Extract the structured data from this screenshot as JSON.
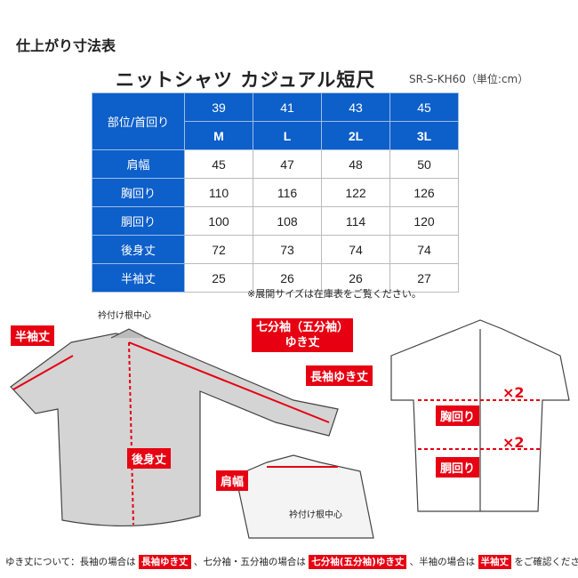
{
  "title": "仕上がり寸法表",
  "product": "ニットシャツ カジュアル短尺",
  "code": "SR-S-KH60（単位:cm）",
  "table": {
    "corner": "部位/首回り",
    "necks": [
      "39",
      "41",
      "43",
      "45"
    ],
    "sizes": [
      "M",
      "L",
      "2L",
      "3L"
    ],
    "rows": [
      {
        "label": "肩幅",
        "values": [
          "45",
          "47",
          "48",
          "50"
        ]
      },
      {
        "label": "胸回り",
        "values": [
          "110",
          "116",
          "122",
          "126"
        ]
      },
      {
        "label": "胴回り",
        "values": [
          "100",
          "108",
          "114",
          "120"
        ]
      },
      {
        "label": "後身丈",
        "values": [
          "72",
          "73",
          "74",
          "74"
        ]
      },
      {
        "label": "半袖丈",
        "values": [
          "25",
          "26",
          "26",
          "27"
        ]
      }
    ]
  },
  "note": "※展開サイズは在庫表をご覧ください。",
  "diagram": {
    "half_sleeve": "半袖丈",
    "collar_center": "衿付け根中心",
    "three_quarter_line1": "七分袖（五分袖）",
    "three_quarter_line2": "ゆき丈",
    "long_sleeve": "長袖ゆき丈",
    "back_length": "後身丈",
    "shoulder": "肩幅",
    "collar_center2": "衿付け根中心",
    "chest": "胸回り",
    "waist": "胴回り",
    "x2a": "×2",
    "x2b": "×2"
  },
  "footer": {
    "t1": "ゆき丈について：長袖の場合は",
    "b1": "長袖ゆき丈",
    "t2": "、七分袖・五分袖の場合は",
    "b2": "七分袖(五分袖)ゆき丈",
    "t3": "、半袖の場合は",
    "b3": "半袖丈",
    "t4": "をご確認ください。"
  },
  "colors": {
    "header": "#0d5fc9",
    "accent": "#e60012"
  }
}
